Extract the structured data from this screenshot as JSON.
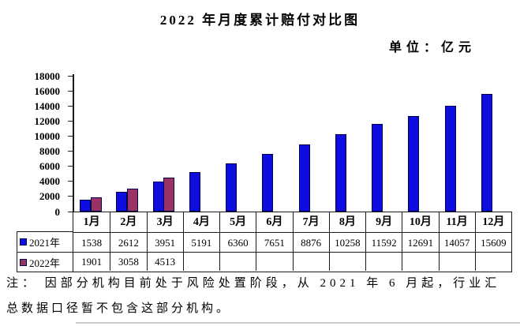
{
  "title": "2022 年月度累计赔付对比图",
  "unit_label": "单位：亿元",
  "chart_data": {
    "type": "bar",
    "title": "2022 年月度累计赔付对比图",
    "unit": "亿元",
    "categories": [
      "1月",
      "2月",
      "3月",
      "4月",
      "5月",
      "6月",
      "7月",
      "8月",
      "9月",
      "10月",
      "11月",
      "12月"
    ],
    "series": [
      {
        "name": "2021年",
        "color": "#0d0ddf",
        "border_color": "#00004d",
        "values": [
          1538,
          2612,
          3951,
          5191,
          6360,
          7651,
          8876,
          10258,
          11592,
          12691,
          14057,
          15609
        ]
      },
      {
        "name": "2022年",
        "color": "#993366",
        "border_color": "#00004d",
        "values": [
          1901,
          3058,
          4513,
          null,
          null,
          null,
          null,
          null,
          null,
          null,
          null,
          null
        ]
      }
    ],
    "xlabel": "",
    "ylabel": "",
    "ylim": [
      0,
      18000
    ],
    "ytick_step": 2000,
    "grid": false,
    "legend_position": "table-left",
    "data_table_shown": true
  },
  "note": {
    "line1": "注： 因部分机构目前处于风险处置阶段，从 2021 年 6 月起，行业汇",
    "line2": "总数据口径暂不包含这部分机构。"
  }
}
